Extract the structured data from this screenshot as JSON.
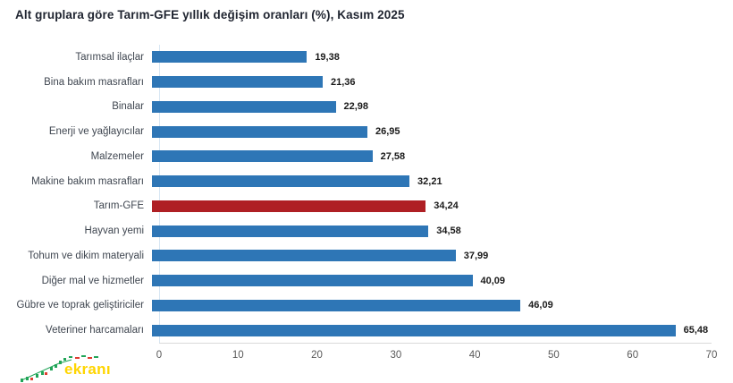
{
  "page": {
    "background": "#FFFFFF"
  },
  "chart_data": {
    "type": "bar",
    "orientation": "horizontal",
    "title": "Alt gruplara göre Tarım-GFE yıllık değişim oranları (%), Kasım 2025",
    "categories": [
      "Tarımsal ilaçlar",
      "Bina bakım masrafları",
      "Binalar",
      "Enerji ve yağlayıcılar",
      "Malzemeler",
      "Makine bakım masrafları",
      "Tarım-GFE",
      "Hayvan yemi",
      "Tohum ve dikim materyali",
      "Diğer mal ve hizmetler",
      "Gübre ve toprak geliştiriciler",
      "Veteriner harcamaları"
    ],
    "values": [
      19.38,
      21.36,
      22.98,
      26.95,
      27.58,
      32.21,
      34.24,
      34.58,
      37.99,
      40.09,
      46.09,
      65.48
    ],
    "value_labels": [
      "19,38",
      "21,36",
      "22,98",
      "26,95",
      "27,58",
      "32,21",
      "34,24",
      "34,58",
      "37,99",
      "40,09",
      "46,09",
      "65,48"
    ],
    "highlight_index": 6,
    "highlight_category": "Tarım-GFE",
    "x_ticks": [
      "0",
      "10",
      "20",
      "30",
      "40",
      "50",
      "60",
      "70"
    ],
    "xlim": [
      0,
      70
    ],
    "grid": false,
    "legend": false,
    "colors": {
      "bar": "#2E76B6",
      "highlight": "#AF1F24",
      "axis_line": "#D9D9D9",
      "y_axis_line": "#D7E6F3",
      "tick_label": "#595959",
      "category_label": "#3F4650",
      "value_label": "#1A1A1A",
      "title": "#1F2430"
    }
  },
  "watermark": {
    "text": "ekranı",
    "text_color": "#FFD500",
    "candle_up_color": "#21A558",
    "candle_down_color": "#E03C31"
  }
}
